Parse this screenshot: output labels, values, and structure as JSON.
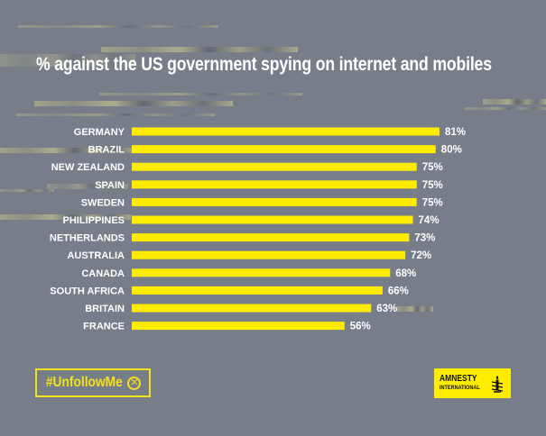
{
  "title": "% against the US government spying on internet and mobiles",
  "hashtag": {
    "label": "#UnfollowMe",
    "icon": "circled-x-icon",
    "icon_glyph": "✕"
  },
  "logo": {
    "line1": "AMNESTY",
    "line2": "INTERNATIONAL",
    "icon": "candle-barbed-wire-icon"
  },
  "colors": {
    "background": "#787d8a",
    "bar": "#ffec00",
    "text": "#ffffff",
    "accent": "#f2e21c"
  },
  "chart_data": {
    "type": "bar",
    "orientation": "horizontal",
    "title": "% against the US government spying on internet and mobiles",
    "xlabel": "",
    "ylabel": "",
    "unit": "%",
    "xlim": [
      0,
      100
    ],
    "grid": false,
    "legend": null,
    "categories": [
      "GERMANY",
      "BRAZIL",
      "NEW ZEALAND",
      "SPAIN",
      "SWEDEN",
      "PHILIPPINES",
      "NETHERLANDS",
      "AUSTRALIA",
      "CANADA",
      "SOUTH AFRICA",
      "BRITAIN",
      "FRANCE"
    ],
    "values": [
      81,
      80,
      75,
      75,
      75,
      74,
      73,
      72,
      68,
      66,
      63,
      56
    ],
    "data_labels": [
      "81%",
      "80%",
      "75%",
      "75%",
      "75%",
      "74%",
      "73%",
      "72%",
      "68%",
      "66%",
      "63%",
      "56%"
    ]
  }
}
